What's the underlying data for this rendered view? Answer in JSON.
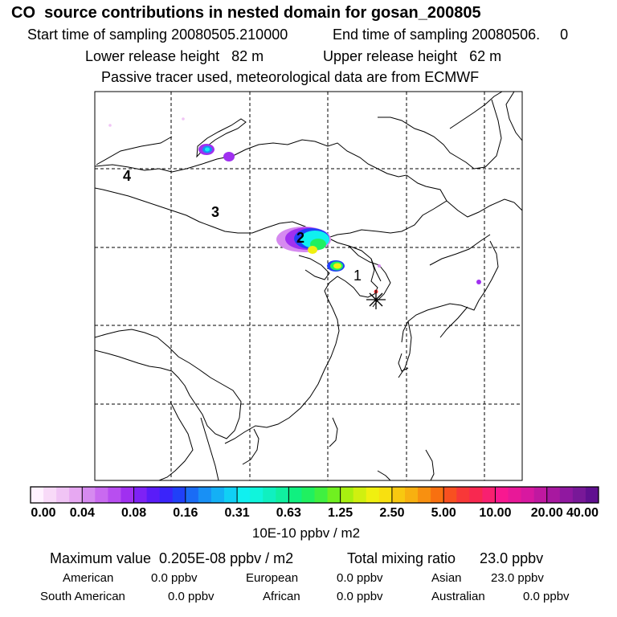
{
  "header": {
    "title": "CO  source contributions in nested domain for gosan_200805",
    "start_label": "Start time of sampling 20080505.210000",
    "end_label": "End time of sampling 20080506.     0",
    "lower_label": "Lower release height   82 m",
    "upper_label": "Upper release height   62 m",
    "tracer_label": "Passive tracer used, meteorological data are from ECMWF"
  },
  "chart_data": {
    "type": "heatmap",
    "title": "CO  source contributions in nested domain for gosan_200805",
    "region_labels": [
      "1",
      "2",
      "3",
      "4"
    ],
    "receptor": "Gosan",
    "colorbar": {
      "ticks": [
        "0.00",
        "0.04",
        "0.08",
        "0.16",
        "0.31",
        "0.63",
        "1.25",
        "2.50",
        "5.00",
        "10.00",
        "20.00",
        "40.00"
      ],
      "unit": "10E-10 ppbv / m2",
      "colors": [
        "#fff2ff",
        "#f8daf8",
        "#f0c4f5",
        "#e7a8f2",
        "#d68af0",
        "#c96af0",
        "#b84ef0",
        "#a030f0",
        "#7e22f5",
        "#5a1cf8",
        "#3a24fa",
        "#2040f8",
        "#1a6cf5",
        "#1890f5",
        "#14b0f5",
        "#10d0f5",
        "#10f0f0",
        "#10f5dc",
        "#10f0c0",
        "#10f0a0",
        "#10f080",
        "#20f060",
        "#40f040",
        "#70f020",
        "#a8f010",
        "#d0f010",
        "#f0f010",
        "#f8e010",
        "#f8c810",
        "#f8b010",
        "#f89010",
        "#f87010",
        "#f85020",
        "#f83838",
        "#f82850",
        "#f82070",
        "#f81890",
        "#e81898",
        "#d818a0",
        "#c018a0",
        "#a818a0",
        "#9018a0",
        "#781898",
        "#601090"
      ]
    }
  },
  "stats": {
    "max_label": "Maximum value  0.205E-08 ppbv / m2",
    "total_label": "Total mixing ratio      23.0 ppbv",
    "american_label": "American",
    "american_value": "0.0 ppbv",
    "european_label": "European",
    "european_value": "0.0 ppbv",
    "asian_label": "Asian",
    "asian_value": "23.0 ppbv",
    "south_american_label": "South American",
    "south_american_value": "0.0 ppbv",
    "african_label": "African",
    "african_value": "0.0 ppbv",
    "australian_label": "Australian",
    "australian_value": "0.0 ppbv"
  }
}
